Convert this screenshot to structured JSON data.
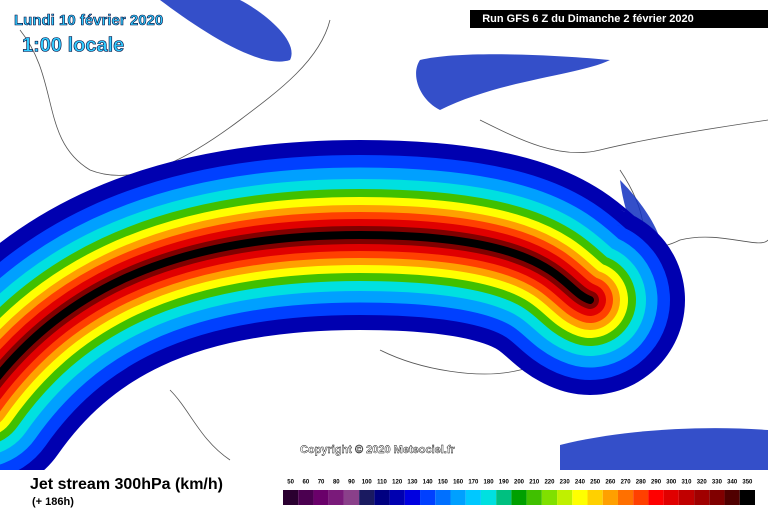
{
  "header": {
    "date": "Lundi 10 février 2020",
    "time": "1:00 locale",
    "run": "Run GFS 6 Z du Dimanche 2 février 2020"
  },
  "copyright": "Copyright © 2020 Meteociel.fr",
  "footer": {
    "title": "Jet stream 300hPa (km/h)",
    "lead": "(+ 186h)"
  },
  "legend": {
    "levels": [
      50,
      60,
      70,
      80,
      90,
      100,
      110,
      120,
      130,
      140,
      150,
      160,
      170,
      180,
      190,
      200,
      210,
      220,
      230,
      240,
      250,
      260,
      270,
      280,
      290,
      300,
      310,
      320,
      330,
      340,
      350
    ],
    "colors": [
      "#2a0030",
      "#4b0050",
      "#6a006a",
      "#7a1a7a",
      "#8a408a",
      "#1a1a60",
      "#000080",
      "#0000b0",
      "#0000e0",
      "#0040ff",
      "#0070ff",
      "#00a0ff",
      "#00c8ff",
      "#00e0e0",
      "#00c080",
      "#00a000",
      "#40c000",
      "#80e000",
      "#c0f000",
      "#ffff00",
      "#ffd000",
      "#ffa000",
      "#ff7000",
      "#ff4000",
      "#ff0000",
      "#e00000",
      "#c00000",
      "#a00000",
      "#800000",
      "#500000",
      "#000000"
    ]
  }
}
